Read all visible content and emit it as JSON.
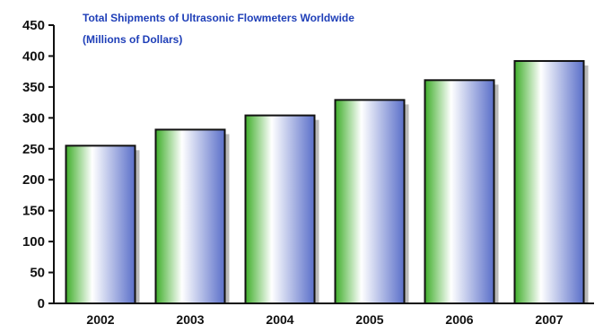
{
  "chart_data": {
    "type": "bar",
    "title": "Total Shipments of Ultrasonic Flowmeters Worldwide",
    "subtitle": "(Millions of Dollars)",
    "categories": [
      "2002",
      "2003",
      "2004",
      "2005",
      "2006",
      "2007"
    ],
    "values": [
      255,
      281,
      304,
      329,
      361,
      392
    ],
    "ylim": [
      0,
      450
    ],
    "yticks": [
      "0",
      "50",
      "100",
      "150",
      "200",
      "250",
      "300",
      "350",
      "400",
      "450"
    ],
    "xlabel": "",
    "ylabel": "",
    "grid": false,
    "colors": {
      "bar_left": "#3fae2a",
      "bar_mid": "#ffffff",
      "bar_right": "#5a6fc9",
      "title": "#1f3fb8"
    }
  }
}
